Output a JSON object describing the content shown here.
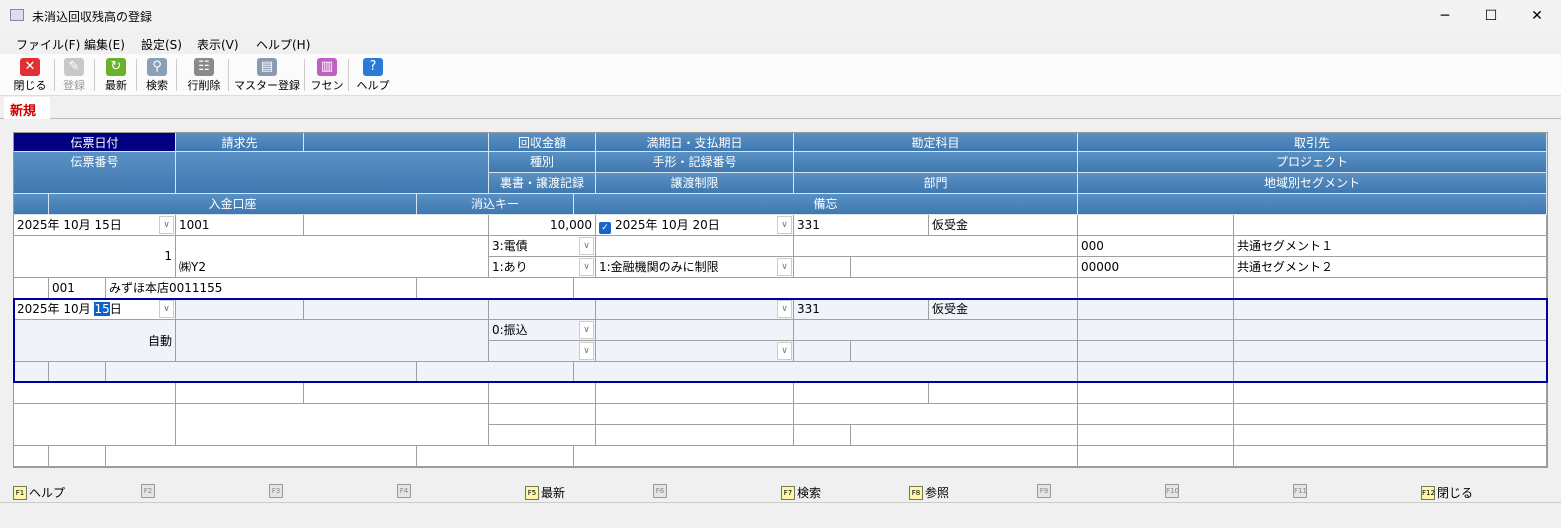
{
  "window": {
    "title": "未消込回収残高の登録",
    "minimize": "─",
    "maximize": "☐",
    "close": "✕"
  },
  "menu": [
    "ファイル(F)",
    "編集(E)",
    "設定(S)",
    "表示(V)",
    "ヘルプ(H)"
  ],
  "toolbar": [
    {
      "label": "閉じる",
      "icon": "close-icon",
      "color": "#e03030",
      "glyph": "✕",
      "enabled": true
    },
    {
      "label": "登録",
      "icon": "register-icon",
      "color": "#c8c8c8",
      "glyph": "✎",
      "enabled": false
    },
    {
      "label": "最新",
      "icon": "refresh-icon",
      "color": "#6ab02a",
      "glyph": "↻",
      "enabled": true
    },
    {
      "label": "検索",
      "icon": "search-icon",
      "color": "#8aa0b8",
      "glyph": "⚲",
      "enabled": true
    },
    {
      "label": "行削除",
      "icon": "delete-row-icon",
      "color": "#8a8a8a",
      "glyph": "☷",
      "enabled": true
    },
    {
      "label": "マスター登録",
      "icon": "master-icon",
      "color": "#8a9ab0",
      "glyph": "▤",
      "enabled": true
    },
    {
      "label": "フセン",
      "icon": "sticky-note-icon",
      "color": "#c060c0",
      "glyph": "▥",
      "enabled": true
    },
    {
      "label": "ヘルプ",
      "icon": "help-icon",
      "color": "#2a7ad8",
      "glyph": "?",
      "enabled": true
    }
  ],
  "tab": "新規",
  "headers": {
    "date": "伝票日付",
    "billing": "請求先",
    "amount": "回収金額",
    "due": "満期日・支払期日",
    "account": "勘定科目",
    "partner": "取引先",
    "slip_no": "伝票番号",
    "kind": "種別",
    "note_no": "手形・記録番号",
    "project": "プロジェクト",
    "endorse": "裏書・譲渡記録",
    "transfer": "譲渡制限",
    "dept": "部門",
    "segment": "地域別セグメント",
    "bank": "入金口座",
    "key": "消込キー",
    "memo": "備忘"
  },
  "rows": [
    {
      "date": "2025年 10月 15日",
      "billing_code": "1001",
      "amount": "10,000",
      "due_checked": true,
      "due": "2025年 10月 20日",
      "account_code": "331",
      "account_name": "仮受金",
      "slip_no": "1",
      "billing_name": "㈱Y2",
      "kind": "3:電債",
      "endorse": "1:あり",
      "transfer": "1:金融機関のみに制限",
      "project_code": "000",
      "project_name": "共通セグメント１",
      "segment_code": "00000",
      "segment_name": "共通セグメント２",
      "bank_code": "001",
      "bank_name": "みずほ本店0011155"
    },
    {
      "date_pre": "2025年 10月 ",
      "date_sel": "15",
      "date_post": "日",
      "account_code": "331",
      "account_name": "仮受金",
      "slip_no": "自動",
      "kind": "0:振込"
    }
  ],
  "fkeys": [
    {
      "key": "F1",
      "label": "ヘルプ",
      "on": true
    },
    {
      "key": "F2",
      "label": "",
      "on": false
    },
    {
      "key": "F3",
      "label": "",
      "on": false
    },
    {
      "key": "F4",
      "label": "",
      "on": false
    },
    {
      "key": "F5",
      "label": "最新",
      "on": true
    },
    {
      "key": "F6",
      "label": "",
      "on": false
    },
    {
      "key": "F7",
      "label": "検索",
      "on": true
    },
    {
      "key": "F8",
      "label": "参照",
      "on": true
    },
    {
      "key": "F9",
      "label": "",
      "on": false
    },
    {
      "key": "F10",
      "label": "",
      "on": false
    },
    {
      "key": "F11",
      "label": "",
      "on": false
    },
    {
      "key": "F12",
      "label": "閉じる",
      "on": true
    }
  ]
}
